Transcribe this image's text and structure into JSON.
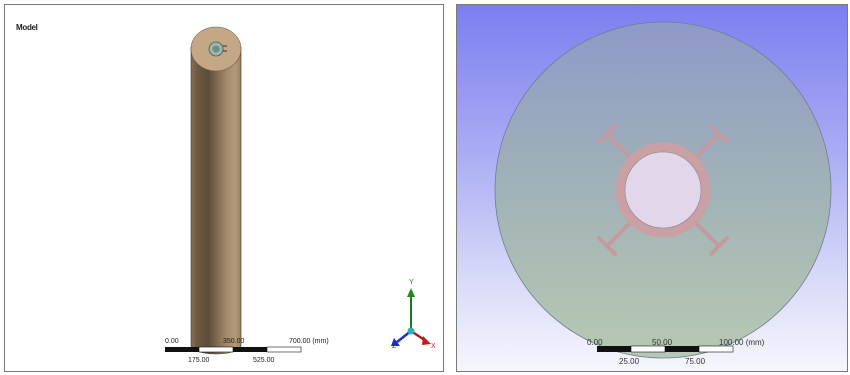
{
  "left_viewport": {
    "model_label": "Model",
    "scale_bar": {
      "top_labels": [
        "0.00",
        "350.00",
        "700.00 (mm)"
      ],
      "bottom_labels": [
        "175.00",
        "525.00"
      ]
    },
    "triad": {
      "y": "Y",
      "z": "Z",
      "x": "X"
    },
    "colors": {
      "body": "#a78a69",
      "top_face": "#c4a886",
      "bore": "#9db7b0"
    }
  },
  "right_viewport": {
    "scale_bar": {
      "top_labels": [
        "0.00",
        "50.00",
        "100.00 (mm)"
      ],
      "bottom_labels": [
        "25.00",
        "75.00"
      ]
    },
    "colors": {
      "background_top": "#7c7ef0",
      "disc": "#9fb3b0",
      "ring": "#c9a0a4"
    }
  }
}
